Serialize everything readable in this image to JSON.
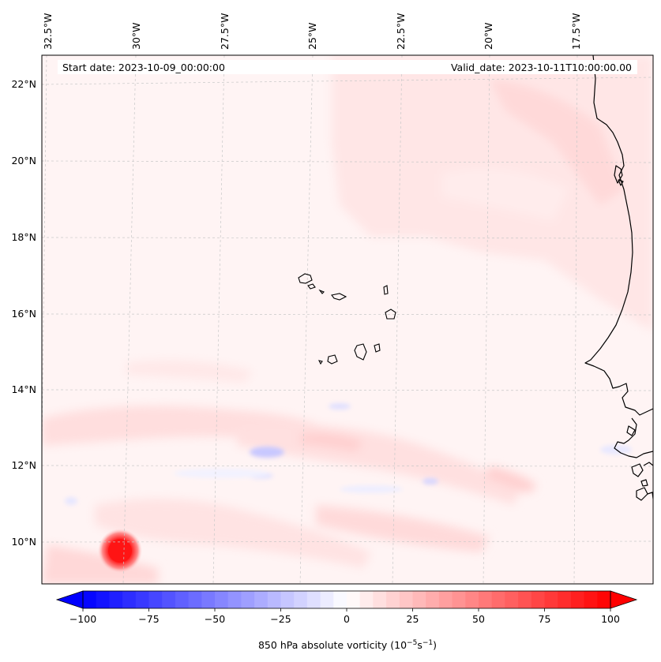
{
  "header": {
    "start_date": "Start date: 2023-10-09_00:00:00",
    "valid_date": "Valid_date: 2023-10-11T10:00:00.00"
  },
  "map": {
    "longitude_labels": [
      "32.5°W",
      "30°W",
      "27.5°W",
      "25°W",
      "22.5°W",
      "20°W",
      "17.5°W"
    ],
    "latitude_labels": [
      "22°N",
      "20°N",
      "18°N",
      "16°N",
      "14°N",
      "12°N",
      "10°N"
    ],
    "field": "850 hPa absolute vorticity",
    "features": [
      "west-african-coastline",
      "cape-verde-islands",
      "vortex-maximum"
    ]
  },
  "colorbar": {
    "label": "850 hPa absolute vorticity (10",
    "label_exp1": "−5",
    "label_mid": "s",
    "label_exp2": "−1",
    "label_close": ")",
    "range": [
      -100,
      100
    ],
    "extend": "both",
    "ticks": [
      "−100",
      "−75",
      "−50",
      "−25",
      "0",
      "25",
      "50",
      "75",
      "100"
    ],
    "colormap": "bwr",
    "colors": {
      "min": "#0000ff",
      "mid": "#ffffff",
      "max": "#ff0000"
    }
  }
}
